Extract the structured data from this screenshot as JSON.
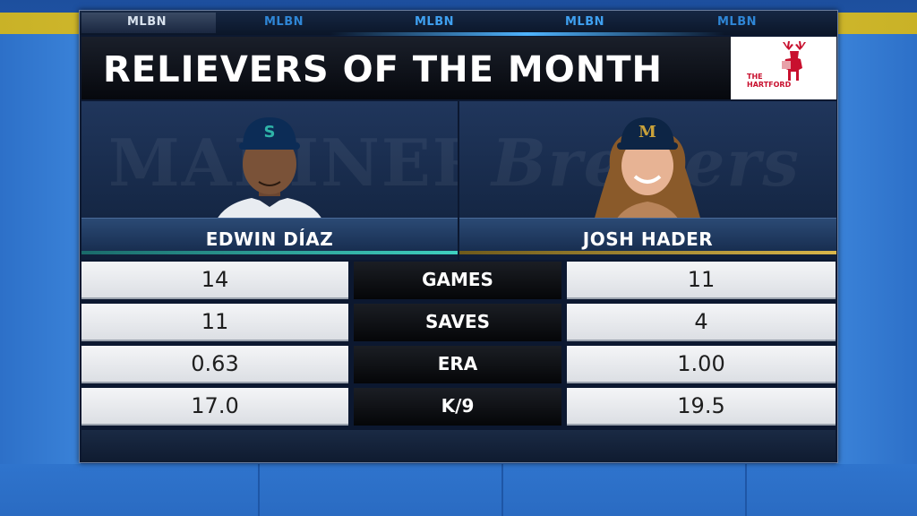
{
  "network": {
    "tabs": [
      "MLBN",
      "MLBN",
      "MLBN",
      "MLBN",
      "MLBN"
    ]
  },
  "graphic": {
    "title": "RELIEVERS OF THE MONTH",
    "sponsor": {
      "line1": "THE",
      "line2": "HARTFORD",
      "icon": "stag-icon"
    }
  },
  "players": {
    "left": {
      "name": "EDWIN DÍAZ",
      "team_watermark": "MARINERS",
      "cap_logo": "S",
      "accent_color": "#3fd0c0"
    },
    "right": {
      "name": "JOSH HADER",
      "team_watermark": "Brewers",
      "cap_logo": "M",
      "accent_color": "#d9b64a"
    }
  },
  "stats": [
    {
      "label": "GAMES",
      "left": "14",
      "right": "11"
    },
    {
      "label": "SAVES",
      "left": "11",
      "right": "4"
    },
    {
      "label": "ERA",
      "left": "0.63",
      "right": "1.00"
    },
    {
      "label": "K/9",
      "left": "17.0",
      "right": "19.5"
    }
  ]
}
